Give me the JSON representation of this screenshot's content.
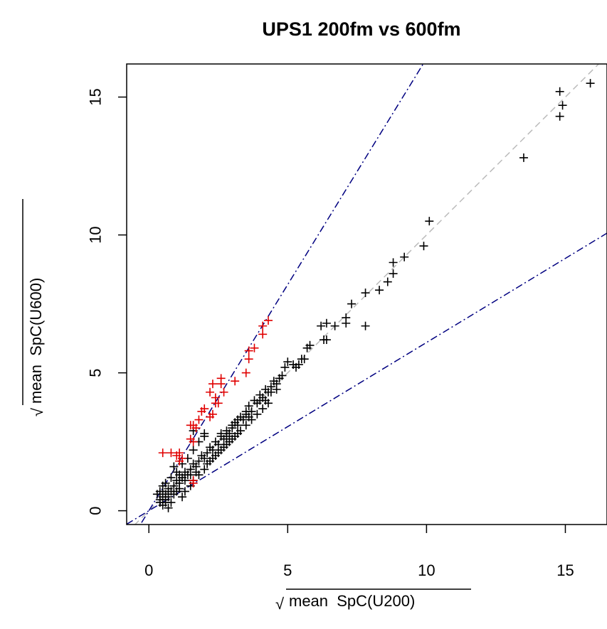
{
  "chart_data": {
    "type": "scatter",
    "title": "UPS1 200fm vs 600fm",
    "xlabel": "mean  SpC(U200)",
    "ylabel": "mean  SpC(U600)",
    "xlabel_prefix": "√",
    "ylabel_prefix": "√",
    "xlim": [
      -0.8,
      16.5
    ],
    "ylim": [
      -0.5,
      16.2
    ],
    "x_ticks": [
      0,
      5,
      10,
      15
    ],
    "y_ticks": [
      0,
      5,
      10,
      15
    ],
    "grid": false,
    "marker": "+",
    "colors": {
      "normal": "#000000",
      "outlier": "#e00000",
      "bounds": "#000080",
      "identity": "#bbbbbb"
    },
    "lines": [
      {
        "kind": "identity",
        "style": "dashed",
        "color": "#bbbbbb",
        "slope": 1,
        "intercept": 0
      },
      {
        "kind": "upper-bound",
        "style": "dotdash",
        "color": "#000080",
        "slope": 1.64,
        "intercept": 0
      },
      {
        "kind": "lower-bound",
        "style": "dotdash",
        "color": "#000080",
        "slope": 0.61,
        "intercept": 0
      }
    ],
    "series": [
      {
        "color": "#000000",
        "points": [
          [
            15.9,
            15.5
          ],
          [
            14.8,
            15.2
          ],
          [
            14.9,
            14.7
          ],
          [
            14.8,
            14.3
          ],
          [
            13.5,
            12.8
          ],
          [
            10.1,
            10.5
          ],
          [
            9.9,
            9.6
          ],
          [
            9.2,
            9.2
          ],
          [
            8.8,
            9.0
          ],
          [
            8.8,
            8.6
          ],
          [
            8.6,
            8.3
          ],
          [
            8.3,
            8.0
          ],
          [
            7.8,
            7.9
          ],
          [
            7.8,
            6.7
          ],
          [
            7.3,
            7.5
          ],
          [
            7.1,
            7.0
          ],
          [
            7.1,
            6.8
          ],
          [
            6.7,
            6.7
          ],
          [
            6.4,
            6.8
          ],
          [
            6.3,
            6.2
          ],
          [
            6.2,
            6.7
          ],
          [
            6.4,
            6.2
          ],
          [
            5.8,
            6.0
          ],
          [
            5.7,
            5.9
          ],
          [
            5.4,
            5.3
          ],
          [
            5.5,
            5.5
          ],
          [
            5.3,
            5.2
          ],
          [
            5.2,
            5.3
          ],
          [
            5.0,
            5.4
          ],
          [
            4.9,
            5.2
          ],
          [
            5.6,
            5.5
          ],
          [
            4.8,
            4.9
          ],
          [
            4.7,
            4.8
          ],
          [
            4.6,
            4.6
          ],
          [
            4.5,
            4.7
          ],
          [
            4.4,
            4.5
          ],
          [
            4.3,
            4.3
          ],
          [
            4.2,
            4.4
          ],
          [
            4.1,
            4.1
          ],
          [
            4.0,
            4.2
          ],
          [
            3.9,
            3.9
          ],
          [
            3.8,
            4.0
          ],
          [
            3.7,
            3.6
          ],
          [
            3.6,
            3.8
          ],
          [
            3.5,
            3.5
          ],
          [
            3.4,
            3.3
          ],
          [
            3.3,
            3.4
          ],
          [
            3.2,
            3.1
          ],
          [
            3.1,
            3.2
          ],
          [
            3.0,
            3.0
          ],
          [
            2.9,
            2.8
          ],
          [
            2.8,
            2.9
          ],
          [
            2.7,
            2.6
          ],
          [
            2.6,
            2.7
          ],
          [
            2.5,
            2.4
          ],
          [
            2.4,
            2.5
          ],
          [
            2.3,
            2.2
          ],
          [
            2.2,
            2.3
          ],
          [
            2.1,
            2.1
          ],
          [
            2.0,
            1.9
          ],
          [
            1.9,
            2.0
          ],
          [
            1.8,
            1.8
          ],
          [
            1.7,
            1.6
          ],
          [
            1.6,
            1.7
          ],
          [
            1.5,
            1.5
          ],
          [
            1.4,
            1.3
          ],
          [
            1.3,
            1.4
          ],
          [
            1.2,
            1.2
          ],
          [
            1.1,
            1.0
          ],
          [
            1.0,
            1.1
          ],
          [
            0.9,
            0.9
          ],
          [
            0.8,
            0.7
          ],
          [
            0.7,
            0.8
          ],
          [
            0.6,
            0.6
          ],
          [
            0.5,
            0.5
          ],
          [
            0.4,
            0.4
          ],
          [
            0.5,
            0.2
          ],
          [
            0.6,
            0.3
          ],
          [
            0.7,
            0.1
          ],
          [
            0.8,
            0.3
          ],
          [
            0.3,
            0.6
          ],
          [
            0.4,
            0.7
          ],
          [
            0.5,
            0.9
          ],
          [
            0.6,
            1.0
          ],
          [
            1.2,
            0.5
          ],
          [
            1.3,
            0.7
          ],
          [
            1.5,
            0.9
          ],
          [
            1.6,
            1.1
          ],
          [
            1.8,
            1.3
          ],
          [
            2.0,
            1.5
          ],
          [
            2.2,
            1.8
          ],
          [
            2.4,
            2.0
          ],
          [
            2.6,
            2.2
          ],
          [
            2.8,
            2.4
          ],
          [
            3.0,
            2.6
          ],
          [
            3.2,
            2.8
          ],
          [
            1.0,
            1.4
          ],
          [
            1.2,
            1.7
          ],
          [
            1.4,
            1.9
          ],
          [
            1.6,
            2.2
          ],
          [
            1.8,
            2.5
          ],
          [
            2.0,
            2.7
          ],
          [
            1.6,
            2.9
          ],
          [
            2.0,
            2.8
          ],
          [
            0.9,
            1.6
          ],
          [
            0.8,
            1.2
          ],
          [
            1.1,
            0.8
          ],
          [
            1.3,
            1.1
          ],
          [
            1.5,
            1.3
          ],
          [
            1.7,
            1.4
          ],
          [
            2.1,
            1.7
          ],
          [
            2.3,
            1.9
          ],
          [
            2.5,
            2.1
          ],
          [
            2.7,
            2.3
          ],
          [
            2.9,
            2.5
          ],
          [
            3.1,
            2.7
          ],
          [
            3.3,
            2.9
          ],
          [
            3.5,
            3.1
          ],
          [
            3.7,
            3.3
          ],
          [
            3.9,
            3.5
          ],
          [
            4.1,
            3.7
          ],
          [
            4.3,
            3.9
          ],
          [
            0.6,
            0.4
          ],
          [
            0.7,
            0.5
          ],
          [
            0.9,
            0.6
          ],
          [
            1.0,
            0.7
          ],
          [
            1.1,
            1.3
          ],
          [
            0.5,
            0.7
          ],
          [
            0.4,
            0.3
          ],
          [
            3.5,
            3.6
          ],
          [
            3.6,
            3.4
          ],
          [
            4.0,
            4.0
          ],
          [
            4.2,
            4.0
          ],
          [
            4.4,
            4.3
          ],
          [
            4.6,
            4.4
          ],
          [
            2.6,
            2.8
          ],
          [
            2.8,
            2.7
          ],
          [
            3.0,
            3.1
          ],
          [
            3.2,
            3.3
          ]
        ]
      },
      {
        "color": "#e00000",
        "points": [
          [
            4.3,
            6.9
          ],
          [
            4.1,
            6.7
          ],
          [
            4.1,
            6.4
          ],
          [
            3.8,
            5.9
          ],
          [
            3.6,
            5.8
          ],
          [
            3.6,
            5.5
          ],
          [
            3.5,
            5.0
          ],
          [
            3.1,
            4.7
          ],
          [
            2.6,
            4.8
          ],
          [
            2.6,
            4.6
          ],
          [
            2.7,
            4.3
          ],
          [
            2.3,
            4.6
          ],
          [
            2.2,
            4.3
          ],
          [
            2.4,
            4.1
          ],
          [
            2.4,
            3.9
          ],
          [
            2.5,
            3.9
          ],
          [
            2.3,
            3.5
          ],
          [
            2.2,
            3.4
          ],
          [
            2.0,
            3.7
          ],
          [
            1.9,
            3.6
          ],
          [
            1.8,
            3.3
          ],
          [
            1.7,
            3.0
          ],
          [
            1.5,
            3.1
          ],
          [
            1.6,
            3.1
          ],
          [
            1.5,
            2.6
          ],
          [
            1.6,
            2.5
          ],
          [
            1.1,
            2.1
          ],
          [
            1.0,
            2.0
          ],
          [
            1.1,
            1.8
          ],
          [
            0.8,
            2.1
          ],
          [
            0.5,
            2.1
          ],
          [
            1.6,
            1.1
          ],
          [
            1.6,
            1.0
          ],
          [
            1.2,
            1.9
          ]
        ]
      }
    ]
  }
}
